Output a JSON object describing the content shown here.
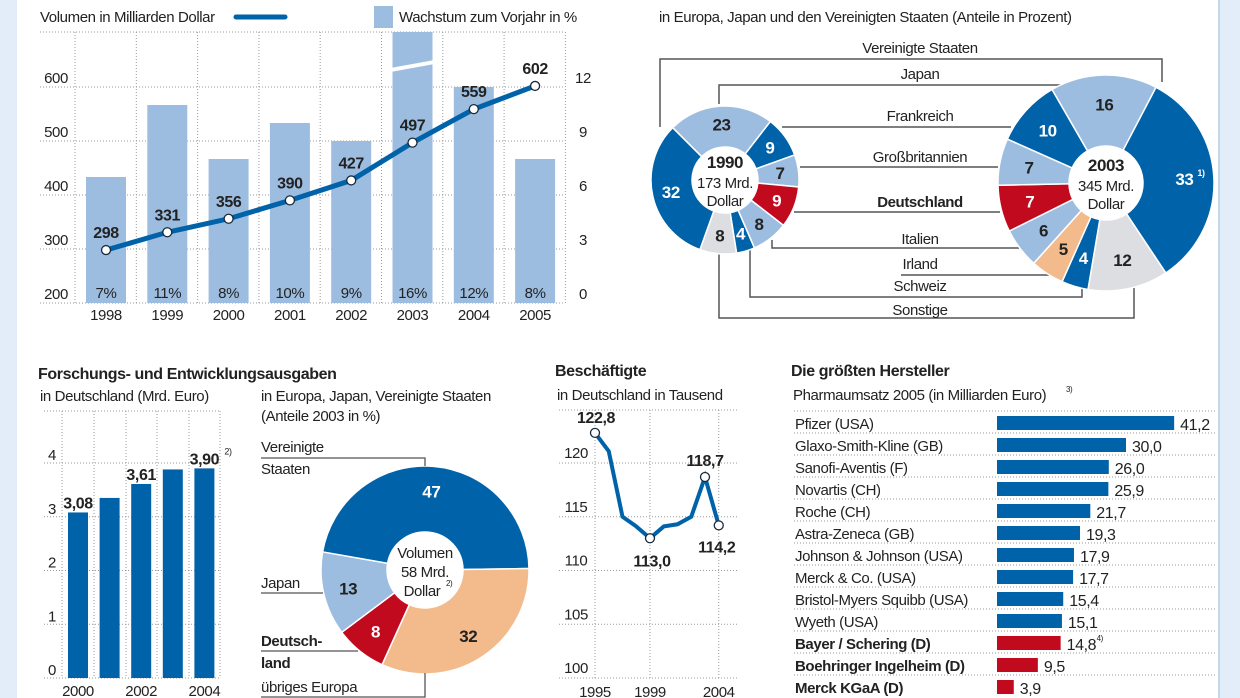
{
  "colors": {
    "dark_blue": "#0062a8",
    "light_blue": "#9dbde0",
    "red": "#c20a1f",
    "orange": "#f3bb8c",
    "gray": "#dcdee1",
    "side_strip": "#e2edf9",
    "text": "#222222"
  },
  "chart_data": [
    {
      "type": "bar+line",
      "legend_line": "Volumen in Milliarden Dollar",
      "legend_bar": "Wachstum zum Vorjahr in %",
      "categories": [
        "1998",
        "1999",
        "2000",
        "2001",
        "2002",
        "2003",
        "2004",
        "2005"
      ],
      "line_values": [
        298,
        331,
        356,
        390,
        427,
        497,
        559,
        602
      ],
      "line_labels": [
        "298",
        "331",
        "356",
        "390",
        "427",
        "497",
        "559",
        "602"
      ],
      "bar_values": [
        7,
        11,
        8,
        10,
        9,
        16,
        12,
        8
      ],
      "bar_labels": [
        "7%",
        "11%",
        "8%",
        "10%",
        "9%",
        "16%",
        "12%",
        "8%"
      ],
      "broken_bar": "2003",
      "left_axis": {
        "ticks": [
          "200",
          "300",
          "400",
          "500",
          "600"
        ],
        "range": [
          200,
          600
        ]
      },
      "right_axis": {
        "ticks": [
          "0",
          "3",
          "6",
          "9",
          "12"
        ],
        "range": [
          0,
          12
        ]
      },
      "grid": true
    },
    {
      "type": "donut",
      "subtitle": "in Europa, Japan und den Vereinigten Staaten (Anteile in Prozent)",
      "categories": [
        "Vereinigte Staaten",
        "Japan",
        "Frankreich",
        "Großbritannien",
        "Deutschland",
        "Italien",
        "Irland",
        "Schweiz",
        "Sonstige"
      ],
      "category_colors": [
        "dark_blue",
        "light_blue",
        "dark_blue",
        "light_blue",
        "red",
        "light_blue",
        "orange",
        "dark_blue",
        "gray"
      ],
      "series": [
        {
          "name": "1990",
          "center": [
            "1990",
            "173 Mrd.",
            "Dollar"
          ],
          "values": [
            32,
            23,
            9,
            7,
            9,
            8,
            0,
            4,
            8
          ],
          "labels": [
            "32",
            "23",
            "9",
            "7",
            "9",
            "8",
            "",
            "4",
            "8"
          ]
        },
        {
          "name": "2003",
          "center": [
            "2003",
            "345 Mrd.",
            "Dollar"
          ],
          "values": [
            33,
            16,
            10,
            7,
            7,
            6,
            5,
            4,
            12
          ],
          "labels": [
            "33",
            "16",
            "10",
            "7",
            "7",
            "6",
            "5",
            "4",
            "12"
          ],
          "footnote_us": "1)"
        }
      ]
    },
    {
      "type": "bar",
      "title": "Forschungs- und Entwicklungsausgaben",
      "subtitle": "in Deutschland (Mrd. Euro)",
      "categories": [
        "2000",
        "2001",
        "2002",
        "2003",
        "2004"
      ],
      "values": [
        3.08,
        3.35,
        3.61,
        3.88,
        3.9
      ],
      "value_labels": [
        "3,08",
        "",
        "3,61",
        "",
        "3,90"
      ],
      "value_footnote": "2)",
      "xtick_labels": [
        "2000",
        "",
        "2002",
        "",
        "2004"
      ],
      "yticks": [
        "0",
        "1",
        "2",
        "3",
        "4"
      ],
      "ylim": [
        0,
        4
      ],
      "grid": true
    },
    {
      "type": "pie",
      "subtitle": [
        "in Europa, Japan, Vereinigte Staaten",
        "(Anteile 2003 in %)"
      ],
      "categories": [
        "Vereinigte Staaten",
        "übriges Europa",
        "Deutschland",
        "Japan"
      ],
      "category_label_lines": [
        [
          "Vereinigte",
          "Staaten"
        ],
        [
          "übriges Europa"
        ],
        [
          "Deutsch-",
          "land"
        ],
        [
          "Japan"
        ]
      ],
      "category_colors": [
        "dark_blue",
        "orange",
        "red",
        "light_blue"
      ],
      "values": [
        47,
        32,
        8,
        13
      ],
      "labels": [
        "47",
        "32",
        "8",
        "13"
      ],
      "center": [
        "Volumen",
        "58 Mrd.",
        "Dollar"
      ],
      "center_footnote": "2)"
    },
    {
      "type": "line",
      "title": "Beschäftigte",
      "subtitle": "in Deutschland in Tausend",
      "x": [
        1995,
        1996,
        1997,
        1998,
        1999,
        2000,
        2001,
        2002,
        2003,
        2004
      ],
      "values": [
        122.8,
        121.1,
        115.0,
        114.1,
        113.0,
        114.1,
        114.3,
        115.0,
        118.7,
        114.2
      ],
      "point_labels": [
        {
          "x": 1995,
          "label": "122,8"
        },
        {
          "x": 1999,
          "label": "113,0"
        },
        {
          "x": 2003,
          "label": "118,7"
        },
        {
          "x": 2004,
          "label": "114,2"
        }
      ],
      "xtick_labels": [
        "1995",
        "1999",
        "2004"
      ],
      "yticks": [
        "100",
        "105",
        "110",
        "115",
        "120"
      ],
      "ylim": [
        100,
        122.8
      ],
      "grid": true
    },
    {
      "type": "bar",
      "orientation": "horizontal",
      "title": "Die größten Hersteller",
      "subtitle": "Pharmaumsatz 2005 (in Milliarden Euro)",
      "subtitle_footnote": "3)",
      "categories": [
        "Pfizer (USA)",
        "Glaxo-Smith-Kline (GB)",
        "Sanofi-Aventis (F)",
        "Novartis (CH)",
        "Roche (CH)",
        "Astra-Zeneca (GB)",
        "Johnson & Johnson (USA)",
        "Merck & Co. (USA)",
        "Bristol-Myers Squibb (USA)",
        "Wyeth (USA)",
        "Bayer / Schering (D)",
        "Boehringer Ingelheim (D)",
        "Merck KGaA (D)"
      ],
      "values": [
        41.2,
        30.0,
        26.0,
        25.9,
        21.7,
        19.3,
        17.9,
        17.7,
        15.4,
        15.1,
        14.8,
        9.5,
        3.9
      ],
      "value_labels": [
        "41,2",
        "30,0",
        "26,0",
        "25,9",
        "21,7",
        "19,3",
        "17,9",
        "17,7",
        "15,4",
        "15,1",
        "14,8",
        "9,5",
        "3,9"
      ],
      "highlight": [
        false,
        false,
        false,
        false,
        false,
        false,
        false,
        false,
        false,
        false,
        true,
        true,
        true
      ],
      "footnotes": {
        "10": "4)"
      }
    }
  ]
}
